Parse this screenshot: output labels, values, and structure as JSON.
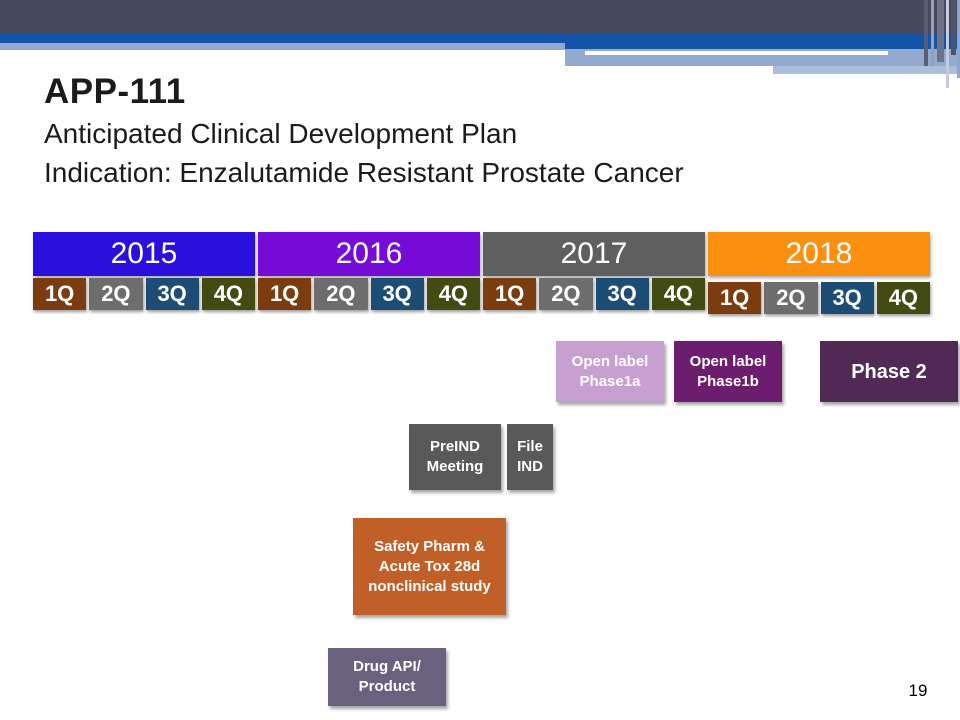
{
  "header": {
    "title": "APP-111",
    "subtitle1": "Anticipated Clinical Development Plan",
    "subtitle2": "Indication: Enzalutamide Resistant Prostate Cancer"
  },
  "timeline": {
    "years": [
      {
        "label": "2015",
        "color": "#2a0fdd"
      },
      {
        "label": "2016",
        "color": "#760bd8"
      },
      {
        "label": "2017",
        "color": "#5f5f5f"
      },
      {
        "label": "2018",
        "color": "#fb9010"
      }
    ],
    "quarters": [
      "1Q",
      "2Q",
      "3Q",
      "4Q"
    ],
    "quarter_colors": [
      "#7b3c10",
      "#6d6d6d",
      "#1d4d75",
      "#434a12"
    ]
  },
  "milestones": {
    "phase1a": {
      "lines": [
        "Open label",
        "Phase1a"
      ],
      "color": "#c79fd0"
    },
    "phase1b": {
      "lines": [
        "Open label",
        "Phase1b"
      ],
      "color": "#6d1d6e"
    },
    "phase2": {
      "lines": [
        "Phase 2"
      ],
      "color": "#502a54"
    },
    "preind": {
      "lines": [
        "PreIND",
        "Meeting"
      ],
      "color": "#595959"
    },
    "file_ind": {
      "lines": [
        "File",
        "IND"
      ],
      "color": "#595959"
    },
    "safety": {
      "lines": [
        "Safety Pharm &",
        "Acute Tox 28d",
        "nonclinical study"
      ],
      "color": "#c06028"
    },
    "drug_api": {
      "lines": [
        "Drug API/",
        "Product"
      ],
      "color": "#6a617f"
    }
  },
  "footer": {
    "page_number": "19"
  },
  "decor": {
    "slate": "#474a5d",
    "blue": "#1353a8",
    "light_blue": "#92aacf",
    "pale_blue": "#aabdd9",
    "white": "#ffffff",
    "stripe_dark": "#5a5e72",
    "stripe_pale": "#9aa0b2",
    "stripe_mid": "#6e7287",
    "stripe_light": "#c3cbdc",
    "stripe_deep": "#515468",
    "stripe_blue": "#8ea6c9"
  }
}
